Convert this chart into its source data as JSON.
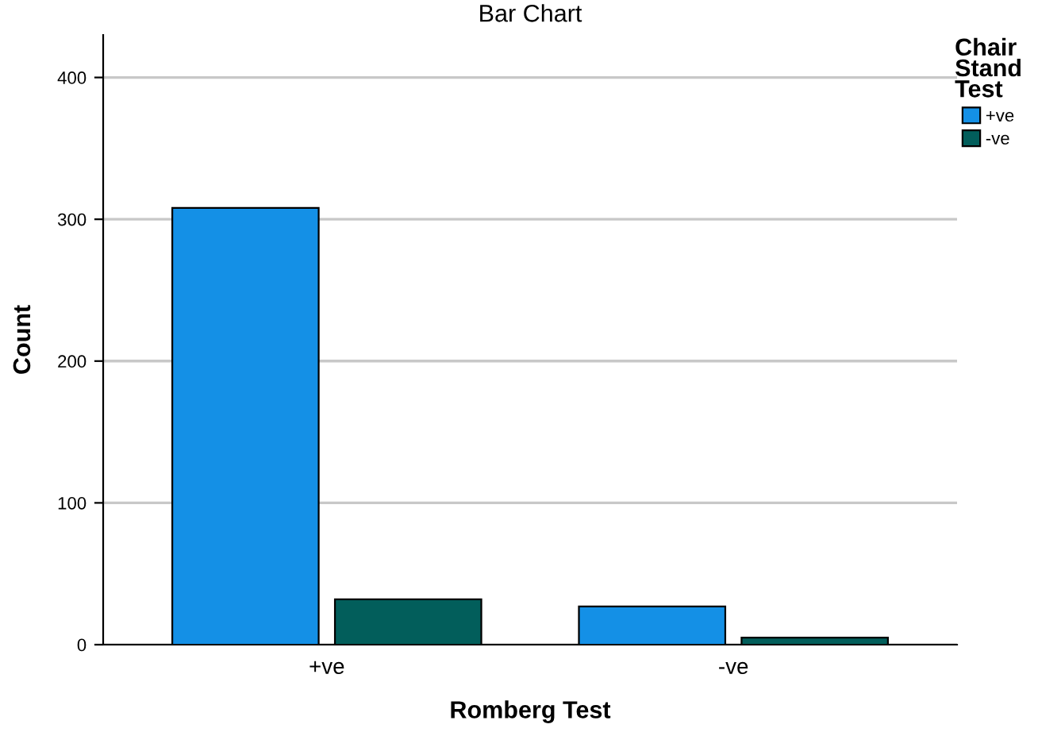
{
  "chart_data": {
    "type": "bar",
    "title": "Bar Chart",
    "xlabel": "Romberg Test",
    "ylabel": "Count",
    "legend_title": "Chair\nStand\nTest",
    "categories": [
      "+ve",
      "-ve"
    ],
    "series": [
      {
        "name": "+ve",
        "color": "#1490e6",
        "values": [
          308,
          27
        ]
      },
      {
        "name": "-ve",
        "color": "#025e5b",
        "values": [
          32,
          5
        ]
      }
    ],
    "ylim": [
      0,
      430
    ],
    "yticks": [
      0,
      100,
      200,
      300,
      400
    ],
    "grid": "y",
    "legend": "top right"
  }
}
